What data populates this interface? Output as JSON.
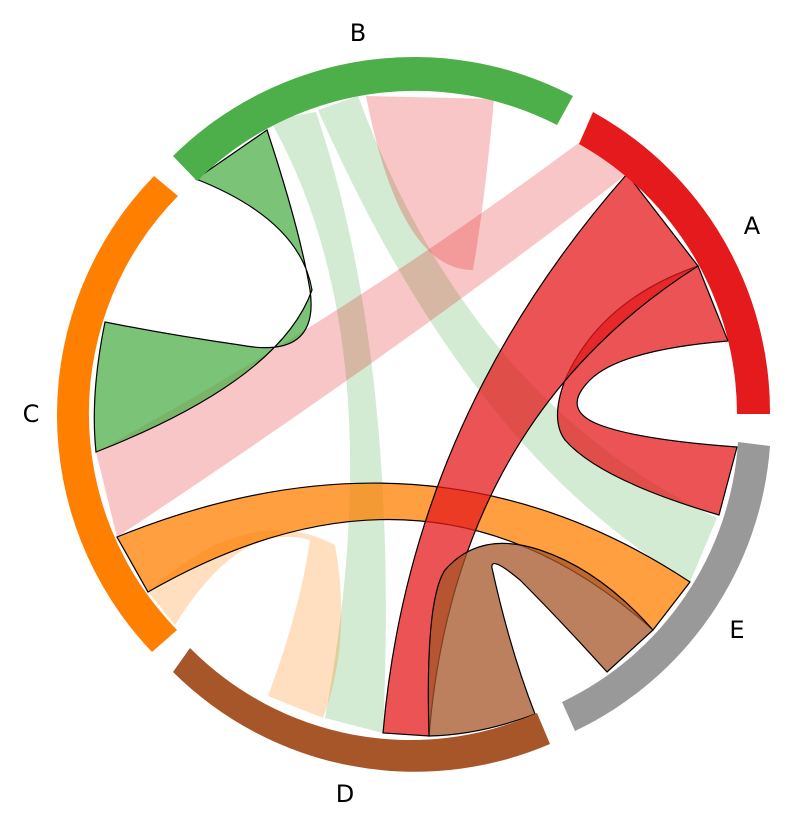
{
  "chart_data": {
    "type": "chord",
    "groups": [
      {
        "label": "A",
        "color": "#e41a1c"
      },
      {
        "label": "B",
        "color": "#4daf4a"
      },
      {
        "label": "C",
        "color": "#ff7f00"
      },
      {
        "label": "D",
        "color": "#a65628"
      },
      {
        "label": "E",
        "color": "#999999"
      }
    ],
    "links": [
      {
        "source": "A",
        "target": "A",
        "emphasis": "high"
      },
      {
        "source": "A",
        "target": "D",
        "emphasis": "high"
      },
      {
        "source": "A",
        "target": "B",
        "emphasis": "low"
      },
      {
        "source": "A",
        "target": "C",
        "emphasis": "low"
      },
      {
        "source": "B",
        "target": "C",
        "emphasis": "high"
      },
      {
        "source": "B",
        "target": "D",
        "emphasis": "low"
      },
      {
        "source": "B",
        "target": "E",
        "emphasis": "low"
      },
      {
        "source": "C",
        "target": "E",
        "emphasis": "high"
      },
      {
        "source": "C",
        "target": "D",
        "emphasis": "low"
      },
      {
        "source": "D",
        "target": "E",
        "emphasis": "high"
      }
    ]
  }
}
